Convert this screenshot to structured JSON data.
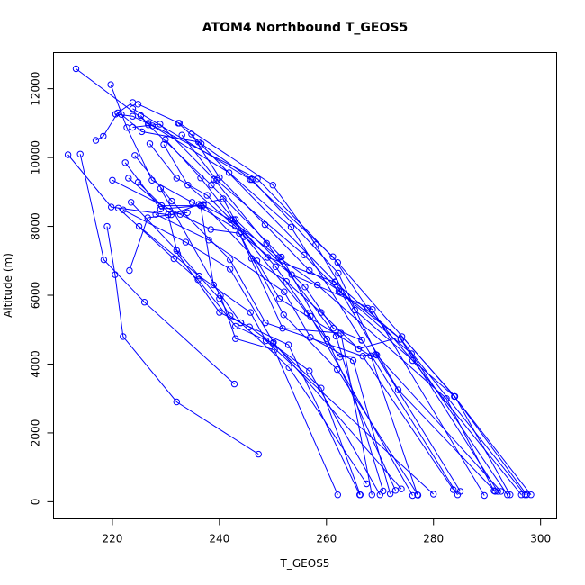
{
  "chart_data": {
    "type": "scatter",
    "title": "ATOM4 Northbound T_GEOS5",
    "xlabel": "T_GEOS5",
    "ylabel": "Altitude (m)",
    "xlim": [
      209,
      303
    ],
    "ylim": [
      -500,
      13050
    ],
    "x_ticks": [
      220,
      240,
      260,
      280,
      300
    ],
    "y_ticks": [
      0,
      2000,
      4000,
      6000,
      8000,
      10000,
      12000
    ],
    "grid": false,
    "legend": false,
    "series_color": "#0000ff",
    "series": [
      {
        "points": [
          [
            213.2,
            12580
          ],
          [
            226.7,
            11000
          ],
          [
            247.1,
            9380
          ],
          [
            262.1,
            6950
          ],
          [
            283.9,
            3060
          ],
          [
            298.2,
            200
          ]
        ]
      },
      {
        "points": [
          [
            219.7,
            12120
          ],
          [
            222.7,
            10870
          ],
          [
            227.4,
            9340
          ],
          [
            234.9,
            8700
          ],
          [
            244.0,
            7850
          ],
          [
            256.4,
            5480
          ],
          [
            262.5,
            4200
          ],
          [
            269.2,
            4280
          ],
          [
            285.0,
            300
          ]
        ]
      },
      {
        "points": [
          [
            224.8,
            11550
          ],
          [
            232.5,
            11000
          ],
          [
            250.0,
            9200
          ],
          [
            258.0,
            7470
          ],
          [
            265.3,
            5570
          ],
          [
            283.9,
            3060
          ],
          [
            297.4,
            200
          ]
        ]
      },
      {
        "points": [
          [
            223.8,
            11420
          ],
          [
            245.8,
            9360
          ],
          [
            261.2,
            7120
          ],
          [
            267.7,
            5620
          ],
          [
            276.1,
            4100
          ],
          [
            296.4,
            200
          ]
        ]
      },
      {
        "points": [
          [
            221.7,
            11250
          ],
          [
            225.5,
            10750
          ],
          [
            236.1,
            10450
          ],
          [
            261.6,
            6390
          ],
          [
            273.4,
            3250
          ],
          [
            291.5,
            300
          ]
        ]
      },
      {
        "points": [
          [
            220.6,
            11260
          ],
          [
            223.8,
            11200
          ],
          [
            227.5,
            10920
          ],
          [
            241.8,
            9560
          ],
          [
            253.4,
            7980
          ],
          [
            266.6,
            4700
          ],
          [
            284.5,
            200
          ]
        ]
      },
      {
        "points": [
          [
            225.3,
            11220
          ],
          [
            226.7,
            10950
          ],
          [
            238.5,
            9200
          ],
          [
            251.6,
            7110
          ],
          [
            260.1,
            4730
          ],
          [
            272.9,
            330
          ]
        ]
      },
      {
        "points": [
          [
            223.8,
            10880
          ],
          [
            228.9,
            10970
          ],
          [
            239.0,
            9370
          ],
          [
            248.8,
            7510
          ],
          [
            261.8,
            4810
          ],
          [
            270.6,
            310
          ]
        ]
      },
      {
        "points": [
          [
            232.3,
            11000
          ],
          [
            236.6,
            10400
          ],
          [
            246.1,
            9360
          ],
          [
            262.2,
            6640
          ],
          [
            269.4,
            4260
          ],
          [
            292.6,
            300
          ]
        ]
      },
      {
        "points": [
          [
            229.9,
            10520
          ],
          [
            236.5,
            9410
          ],
          [
            242.6,
            8200
          ],
          [
            250.5,
            6830
          ],
          [
            257.0,
            5390
          ],
          [
            276.1,
            180
          ]
        ]
      },
      {
        "points": [
          [
            229.6,
            10380
          ],
          [
            234.1,
            9200
          ],
          [
            243.0,
            8000
          ],
          [
            252.0,
            5430
          ],
          [
            262.0,
            3840
          ],
          [
            277.1,
            190
          ]
        ]
      },
      {
        "points": [
          [
            233.0,
            10650
          ],
          [
            239.5,
            9340
          ],
          [
            255.8,
            7170
          ],
          [
            262.3,
            6130
          ],
          [
            275.9,
            4300
          ],
          [
            293.8,
            200
          ]
        ]
      },
      {
        "points": [
          [
            234.8,
            10680
          ],
          [
            240.0,
            9420
          ],
          [
            248.5,
            8050
          ],
          [
            256.8,
            6720
          ],
          [
            262.7,
            6100
          ],
          [
            273.9,
            4720
          ],
          [
            292.0,
            300
          ]
        ]
      },
      {
        "points": [
          [
            227.0,
            10400
          ],
          [
            232.0,
            9400
          ],
          [
            237.7,
            8900
          ],
          [
            249.0,
            7100
          ],
          [
            261.6,
            6380
          ],
          [
            273.9,
            4720
          ],
          [
            297.1,
            200
          ]
        ]
      },
      {
        "points": [
          [
            224.2,
            10060
          ],
          [
            231.1,
            8730
          ],
          [
            242.0,
            7030
          ],
          [
            248.6,
            5200
          ],
          [
            266.8,
            4230
          ],
          [
            283.7,
            350
          ]
        ]
      },
      {
        "points": [
          [
            222.4,
            9850
          ],
          [
            229.0,
            8500
          ],
          [
            237.0,
            8610
          ],
          [
            242.1,
            8190
          ],
          [
            251.1,
            7100
          ],
          [
            258.3,
            6300
          ],
          [
            282.4,
            3000
          ],
          [
            291.3,
            320
          ]
        ]
      },
      {
        "points": [
          [
            211.7,
            10080
          ],
          [
            219.8,
            8560
          ],
          [
            230.4,
            8340
          ],
          [
            232.2,
            7200
          ],
          [
            240.0,
            5500
          ],
          [
            245.6,
            5080
          ],
          [
            256.8,
            3800
          ],
          [
            270.0,
            200
          ]
        ]
      },
      {
        "points": [
          [
            214.0,
            10100
          ],
          [
            218.4,
            7030
          ],
          [
            226.0,
            5800
          ],
          [
            242.8,
            3420
          ]
        ]
      },
      {
        "points": [
          [
            216.9,
            10500
          ],
          [
            218.3,
            10620
          ],
          [
            221.0,
            11300
          ],
          [
            223.8,
            11600
          ]
        ]
      },
      {
        "points": [
          [
            220.0,
            9340
          ],
          [
            232.7,
            8350
          ],
          [
            238.4,
            7910
          ],
          [
            243.7,
            7800
          ],
          [
            251.8,
            5040
          ],
          [
            262.7,
            4900
          ],
          [
            268.5,
            200
          ]
        ]
      },
      {
        "points": [
          [
            223.0,
            9400
          ],
          [
            229.2,
            8600
          ],
          [
            236.5,
            8600
          ],
          [
            238.9,
            6300
          ],
          [
            244.0,
            5200
          ],
          [
            252.9,
            4560
          ],
          [
            266.2,
            200
          ]
        ]
      },
      {
        "points": [
          [
            224.8,
            9280
          ],
          [
            231.0,
            8340
          ],
          [
            236.2,
            8640
          ],
          [
            240.7,
            8800
          ],
          [
            244.6,
            7700
          ],
          [
            253.5,
            6600
          ],
          [
            268.6,
            5590
          ],
          [
            289.5,
            180
          ]
        ]
      },
      {
        "points": [
          [
            223.5,
            8700
          ],
          [
            232.0,
            7300
          ],
          [
            240.0,
            5900
          ],
          [
            242.0,
            5400
          ],
          [
            244.0,
            5200
          ],
          [
            253.0,
            3900
          ],
          [
            267.5,
            520
          ]
        ]
      },
      {
        "points": [
          [
            229.0,
            9100
          ],
          [
            240.2,
            5990
          ],
          [
            243.0,
            4740
          ],
          [
            250.3,
            4410
          ],
          [
            262.1,
            200
          ]
        ]
      },
      {
        "points": [
          [
            221.1,
            8530
          ],
          [
            231.5,
            7060
          ],
          [
            236.0,
            6450
          ],
          [
            243.0,
            5100
          ],
          [
            250.0,
            4600
          ],
          [
            259.0,
            3300
          ],
          [
            266.3,
            200
          ]
        ]
      },
      {
        "points": [
          [
            223.2,
            6720
          ],
          [
            226.6,
            8250
          ],
          [
            234.0,
            8400
          ]
        ]
      },
      {
        "points": [
          [
            222.0,
            8480
          ],
          [
            233.7,
            7540
          ],
          [
            242.0,
            6760
          ],
          [
            250.1,
            4630
          ],
          [
            274.0,
            370
          ]
        ]
      },
      {
        "points": [
          [
            225.0,
            8000
          ],
          [
            236.2,
            6560
          ],
          [
            245.8,
            5500
          ],
          [
            248.7,
            4680
          ],
          [
            280.0,
            220
          ]
        ]
      },
      {
        "points": [
          [
            228.1,
            8350
          ],
          [
            238.0,
            7600
          ],
          [
            252.1,
            6100
          ],
          [
            257.0,
            4780
          ],
          [
            265.0,
            4100
          ],
          [
            271.9,
            230
          ]
        ]
      },
      {
        "points": [
          [
            243.0,
            8200
          ],
          [
            256.0,
            6240
          ],
          [
            261.3,
            5040
          ],
          [
            266.6,
            4690
          ]
        ]
      },
      {
        "points": [
          [
            237.0,
            8640
          ],
          [
            247.0,
            7000
          ],
          [
            251.2,
            5900
          ],
          [
            268.3,
            4240
          ],
          [
            277.0,
            200
          ]
        ]
      },
      {
        "points": [
          [
            246.0,
            7070
          ],
          [
            252.5,
            6400
          ],
          [
            259.0,
            5500
          ],
          [
            266.0,
            4440
          ],
          [
            274.1,
            4800
          ],
          [
            284.0,
            3060
          ],
          [
            294.3,
            200
          ]
        ]
      },
      {
        "points": [
          [
            247.3,
            1380
          ],
          [
            232.0,
            2900
          ],
          [
            222.0,
            4800
          ],
          [
            220.5,
            6600
          ],
          [
            219.0,
            8000
          ]
        ]
      }
    ]
  }
}
